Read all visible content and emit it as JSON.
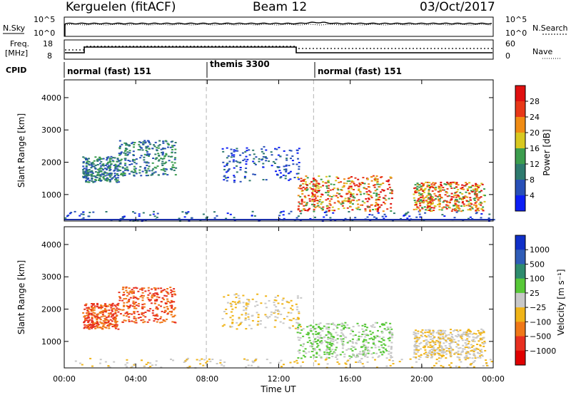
{
  "header": {
    "station": "Kerguelen (fitACF)",
    "beam": "Beam 12",
    "date": "03/Oct/2017"
  },
  "top_panels": {
    "nsky_label": "N.Sky",
    "nsky_ticks": [
      "10^5",
      "10^0"
    ],
    "nsearch_label": "N.Search",
    "nsearch_ticks": [
      "10^5",
      "10^0"
    ],
    "freq_label_1": "Freq.",
    "freq_label_2": "[MHz]",
    "freq_ticks": [
      "18",
      "8"
    ],
    "nave_label": "Nave",
    "nave_ticks": [
      "60",
      "0"
    ],
    "cpid_label": "CPID",
    "cpid_segments": [
      {
        "label": "normal (fast) 151",
        "start_h": 0,
        "end_h": 7.95
      },
      {
        "label": "themis 3300",
        "start_h": 7.95,
        "end_h": 13.95
      },
      {
        "label": "normal (fast) 151",
        "start_h": 13.95,
        "end_h": 24
      }
    ]
  },
  "chart_data": [
    {
      "type": "heatmap",
      "title": "",
      "parameter": "Power",
      "xlabel": "Time UT",
      "ylabel": "Slant Range [km]",
      "xlim": [
        0,
        24
      ],
      "ylim": [
        180,
        4550
      ],
      "x_tick_labels": [
        "00:00",
        "04:00",
        "08:00",
        "12:00",
        "16:00",
        "20:00",
        "00:00"
      ],
      "y_tick_labels": [
        "1000",
        "2000",
        "3000",
        "4000"
      ],
      "colorbar": {
        "label": "Power [dB]",
        "ticks": [
          "4",
          "8",
          "12",
          "16",
          "20",
          "24",
          "28"
        ],
        "colors": [
          "#0c1ef5",
          "#2850b8",
          "#2e7a6e",
          "#3c9d4e",
          "#d8c820",
          "#f08c14",
          "#e83818",
          "#e01010"
        ]
      },
      "scatter_regions": [
        {
          "t_start": 1.0,
          "t_end": 3.0,
          "r_low": 1400,
          "r_high": 2200,
          "level": "medium"
        },
        {
          "t_start": 3.0,
          "t_end": 6.2,
          "r_low": 1600,
          "r_high": 2700,
          "level": "medium"
        },
        {
          "t_start": 0.0,
          "t_end": 24.0,
          "r_low": 200,
          "r_high": 500,
          "level": "low"
        },
        {
          "t_start": 8.8,
          "t_end": 13.2,
          "r_low": 1400,
          "r_high": 2500,
          "level": "low"
        },
        {
          "t_start": 13.0,
          "t_end": 18.3,
          "r_low": 500,
          "r_high": 1600,
          "level": "high"
        },
        {
          "t_start": 19.5,
          "t_end": 23.5,
          "r_low": 500,
          "r_high": 1400,
          "level": "high"
        }
      ]
    },
    {
      "type": "heatmap",
      "title": "",
      "parameter": "Velocity",
      "xlabel": "Time UT",
      "ylabel": "Slant Range [km]",
      "xlim": [
        0,
        24
      ],
      "ylim": [
        180,
        4550
      ],
      "x_tick_labels": [
        "00:00",
        "04:00",
        "08:00",
        "12:00",
        "16:00",
        "20:00",
        "00:00"
      ],
      "y_tick_labels": [
        "1000",
        "2000",
        "3000",
        "4000"
      ],
      "colorbar": {
        "label": "Velocity [m s⁻¹]",
        "ticks": [
          "1000",
          "500",
          "100",
          "25",
          "−25",
          "−100",
          "−500",
          "−1000"
        ],
        "colors": [
          "#1030c8",
          "#2f5db8",
          "#2e8c6e",
          "#58c838",
          "#c8c8c8",
          "#f0b418",
          "#f07818",
          "#e83020",
          "#e00000"
        ]
      }
    }
  ],
  "xaxis_title": "Time UT",
  "colors": {
    "background": "#ffffff",
    "axis": "#000000",
    "dashed": "#b4b4b4"
  }
}
